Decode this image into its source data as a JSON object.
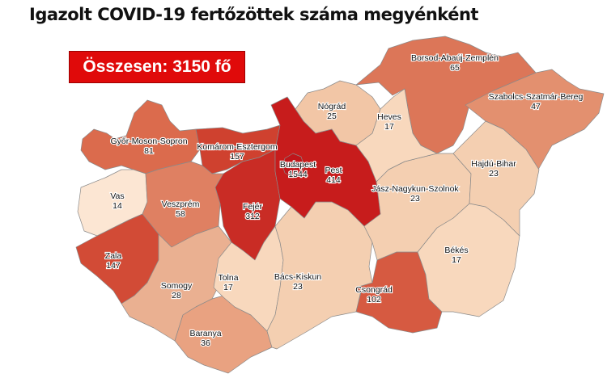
{
  "title": "Igazolt COVID-19 fertőzöttek száma megyénként",
  "total_label": "Összesen: 3150 fő",
  "colors": {
    "total_box": "#e00a0a"
  },
  "counties": [
    {
      "id": "borsod",
      "name": "Borsod-Abaúj-Zemplén",
      "value": "65",
      "color": "#dc7658"
    },
    {
      "id": "szabolcs",
      "name": "Szabolcs-Szatmár-Bereg",
      "value": "47",
      "color": "#e3906f"
    },
    {
      "id": "gyor",
      "name": "Győr-Moson-Sopron",
      "value": "81",
      "color": "#db6b4d"
    },
    {
      "id": "vas",
      "name": "Vas",
      "value": "14",
      "color": "#fce6d3"
    },
    {
      "id": "veszprem",
      "name": "Veszprém",
      "value": "58",
      "color": "#df8062"
    },
    {
      "id": "zala",
      "name": "Zala",
      "value": "147",
      "color": "#d24b36"
    },
    {
      "id": "somogy",
      "name": "Somogy",
      "value": "28",
      "color": "#eab091"
    },
    {
      "id": "baranya",
      "name": "Baranya",
      "value": "36",
      "color": "#e9a281"
    },
    {
      "id": "tolna",
      "name": "Tolna",
      "value": "17",
      "color": "#f8d8bd"
    },
    {
      "id": "bacs",
      "name": "Bács-Kiskun",
      "value": "23",
      "color": "#f4cfb1"
    },
    {
      "id": "csongrad",
      "name": "Csongrád",
      "value": "102",
      "color": "#d65a41"
    },
    {
      "id": "bekes",
      "name": "Békés",
      "value": "17",
      "color": "#f8d8bd"
    },
    {
      "id": "jasz",
      "name": "Jász-Nagykun-Szolnok",
      "value": "23",
      "color": "#f4cfb1"
    },
    {
      "id": "hajdu",
      "name": "Hajdú-Bihar",
      "value": "23",
      "color": "#f4cfb1"
    },
    {
      "id": "heves",
      "name": "Heves",
      "value": "17",
      "color": "#f8d8bd"
    },
    {
      "id": "nograd",
      "name": "Nógrád",
      "value": "25",
      "color": "#f2c6a6"
    },
    {
      "id": "komarom",
      "name": "Komárom-Esztergom",
      "value": "157",
      "color": "#cf412f"
    },
    {
      "id": "fejer",
      "name": "Fejér",
      "value": "312",
      "color": "#c92c25"
    },
    {
      "id": "pest",
      "name": "Pest",
      "value": "414",
      "color": "#c71c1c"
    },
    {
      "id": "budapest",
      "name": "Budapest",
      "value": "1544",
      "color": "#c0151a"
    }
  ]
}
